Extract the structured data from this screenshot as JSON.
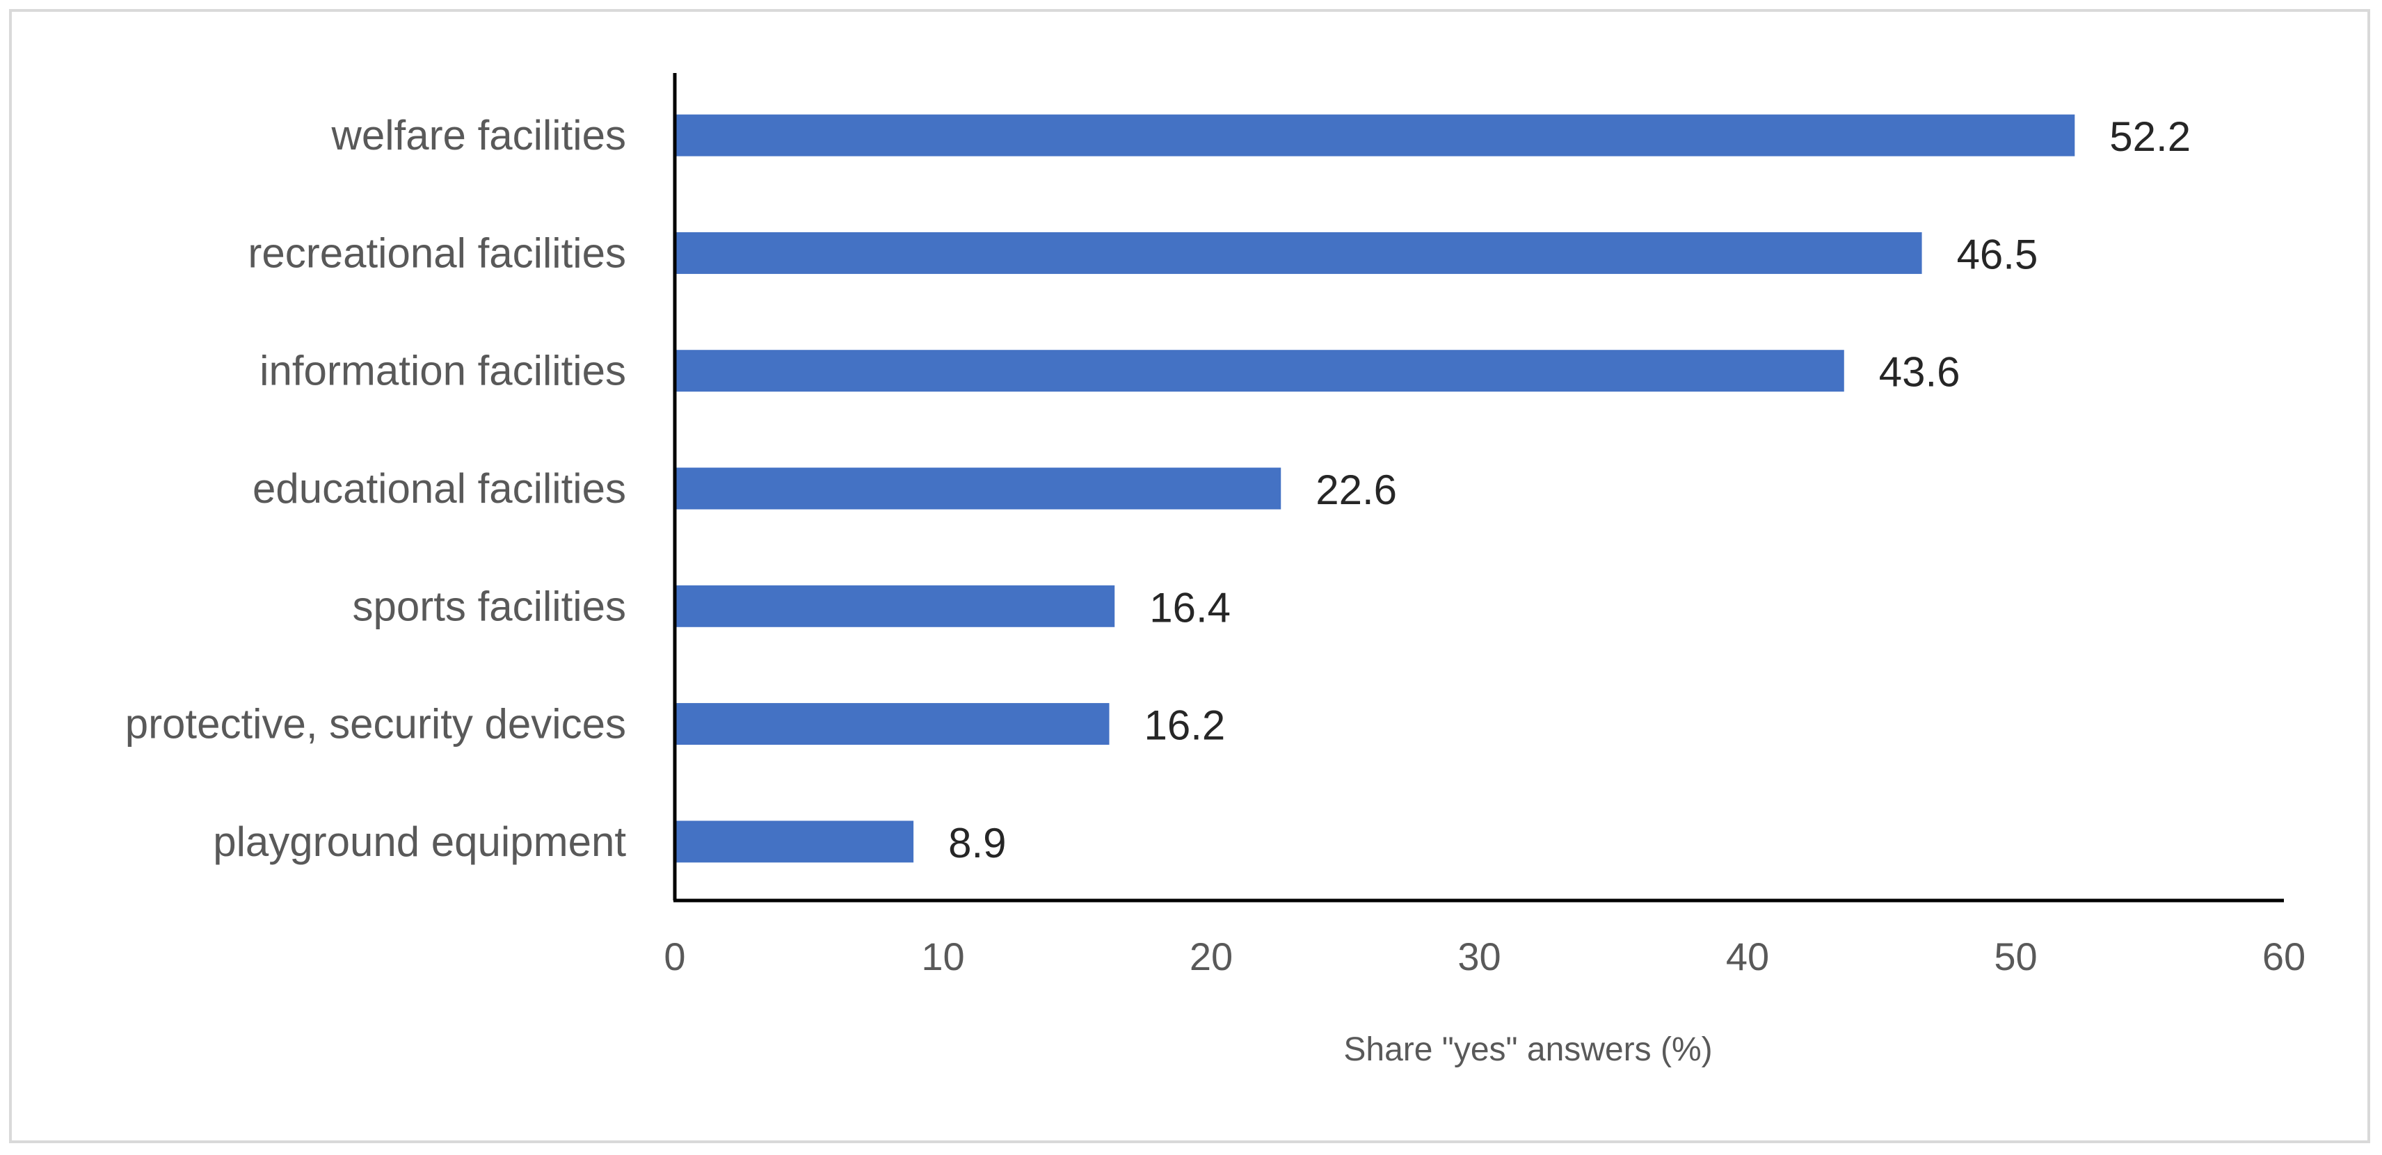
{
  "chart_data": {
    "type": "bar",
    "orientation": "horizontal",
    "categories": [
      "welfare facilities",
      "recreational facilities",
      "information facilities",
      "educational facilities",
      "sports facilities",
      "protective, security devices",
      "playground equipment"
    ],
    "values": [
      52.2,
      46.5,
      43.6,
      22.6,
      16.4,
      16.2,
      8.9
    ],
    "value_labels": [
      "52.2",
      "46.5",
      "43.6",
      "22.6",
      "16.4",
      "16.2",
      "8.9"
    ],
    "title": "",
    "xlabel": "Share \"yes\" answers (%)",
    "ylabel": "",
    "xlim": [
      0,
      60
    ],
    "x_ticks": [
      0,
      10,
      20,
      30,
      40,
      50,
      60
    ],
    "grid": false,
    "legend": "none",
    "bar_color": "#4472c4"
  }
}
